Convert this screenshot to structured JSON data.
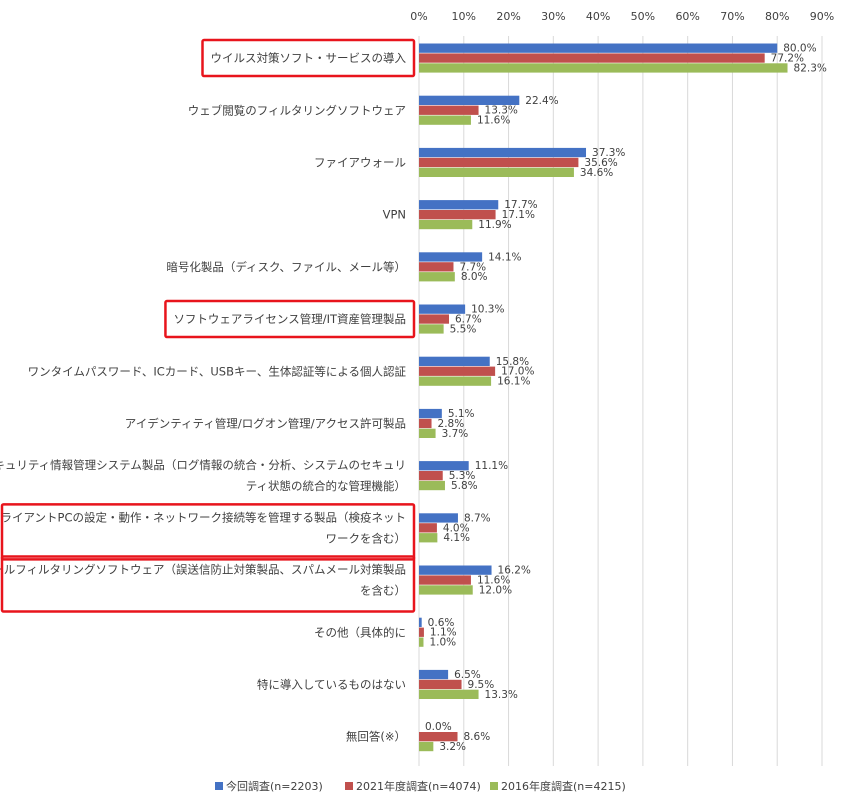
{
  "chart_data": {
    "type": "bar",
    "orientation": "horizontal",
    "xlim": [
      0,
      90
    ],
    "x_ticks": [
      "0%",
      "10%",
      "20%",
      "30%",
      "40%",
      "50%",
      "60%",
      "70%",
      "80%",
      "90%"
    ],
    "x_tick_values": [
      0,
      10,
      20,
      30,
      40,
      50,
      60,
      70,
      80,
      90
    ],
    "axis_position": "top",
    "grid": true,
    "legend_position": "bottom",
    "categories": [
      [
        "ウイルス対策ソフト・サービスの導入"
      ],
      [
        "ウェブ閲覧のフィルタリングソフトウェア"
      ],
      [
        "ファイアウォール"
      ],
      [
        "VPN"
      ],
      [
        "暗号化製品（ディスク、ファイル、メール等）"
      ],
      [
        "ソフトウェアライセンス管理/IT資産管理製品"
      ],
      [
        "ワンタイムパスワード、ICカード、USBキー、生体認証等による個人認証"
      ],
      [
        "アイデンティティ管理/ログオン管理/アクセス許可製品"
      ],
      [
        "セキュリティ情報管理システム製品（ログ情報の統合・分析、システムのセキュリ",
        "ティ状態の統合的な管理機能）"
      ],
      [
        "クライアントPCの設定・動作・ネットワーク接続等を管理する製品（検疫ネット",
        "ワークを含む）"
      ],
      [
        "メールフィルタリングソフトウェア（誤送信防止対策製品、スパムメール対策製品",
        "を含む）"
      ],
      [
        "その他（具体的に"
      ],
      [
        "特に導入しているものはない"
      ],
      [
        "無回答(※）"
      ]
    ],
    "highlighted": [
      true,
      false,
      false,
      false,
      false,
      true,
      false,
      false,
      false,
      true,
      true,
      false,
      false,
      false
    ],
    "series": [
      {
        "name": "今回調査(n=2203)",
        "color": "#4472c4",
        "values": [
          80.0,
          22.4,
          37.3,
          17.7,
          14.1,
          10.3,
          15.8,
          5.1,
          11.1,
          8.7,
          16.2,
          0.6,
          6.5,
          0.0
        ],
        "labels": [
          "80.0%",
          "22.4%",
          "37.3%",
          "17.7%",
          "14.1%",
          "10.3%",
          "15.8%",
          "5.1%",
          "11.1%",
          "8.7%",
          "16.2%",
          "0.6%",
          "6.5%",
          "0.0%"
        ]
      },
      {
        "name": "2021年度調査(n=4074)",
        "color": "#c0504d",
        "values": [
          77.2,
          13.3,
          35.6,
          17.1,
          7.7,
          6.7,
          17.0,
          2.8,
          5.3,
          4.0,
          11.6,
          1.1,
          9.5,
          8.6
        ],
        "labels": [
          "77.2%",
          "13.3%",
          "35.6%",
          "17.1%",
          "7.7%",
          "6.7%",
          "17.0%",
          "2.8%",
          "5.3%",
          "4.0%",
          "11.6%",
          "1.1%",
          "9.5%",
          "8.6%"
        ]
      },
      {
        "name": "2016年度調査(n=4215)",
        "color": "#9bbb59",
        "values": [
          82.3,
          11.6,
          34.6,
          11.9,
          8.0,
          5.5,
          16.1,
          3.7,
          5.8,
          4.1,
          12.0,
          1.0,
          13.3,
          3.2
        ],
        "labels": [
          "82.3%",
          "11.6%",
          "34.6%",
          "11.9%",
          "8.0%",
          "5.5%",
          "16.1%",
          "3.7%",
          "5.8%",
          "4.1%",
          "12.0%",
          "1.0%",
          "13.3%",
          "3.2%"
        ]
      }
    ],
    "highlight_color": "#e8141c"
  }
}
